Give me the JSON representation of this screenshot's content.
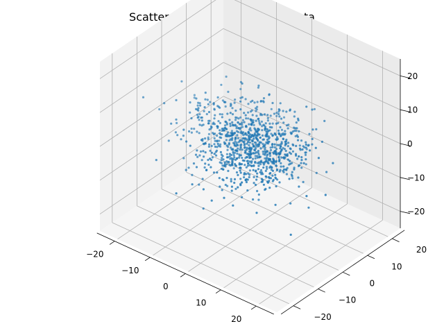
{
  "chart_data": {
    "type": "scatter",
    "projection": "3d",
    "title": "Scatter Plot of the Projected Data",
    "xlabel": "",
    "ylabel": "",
    "zlabel": "",
    "xlim": [
      -25,
      25
    ],
    "ylim": [
      -25,
      25
    ],
    "zlim": [
      -25,
      25
    ],
    "x_ticks": [
      -20,
      -10,
      0,
      10,
      20
    ],
    "y_ticks": [
      -20,
      -10,
      0,
      10,
      20
    ],
    "z_ticks": [
      -20,
      -10,
      0,
      10,
      20
    ],
    "x_tick_labels": [
      "−20",
      "−10",
      "0",
      "10",
      "20"
    ],
    "y_tick_labels": [
      "−20",
      "−10",
      "0",
      "10",
      "20"
    ],
    "z_tick_labels": [
      "−20",
      "−10",
      "0",
      "10",
      "20"
    ],
    "grid": true,
    "marker_color": "#1f77b4",
    "n_points": 1000,
    "distribution": {
      "note": "points form a single roughly isotropic cluster centred near the origin",
      "center": [
        0,
        0,
        0
      ],
      "std": [
        7,
        6,
        5
      ]
    }
  }
}
